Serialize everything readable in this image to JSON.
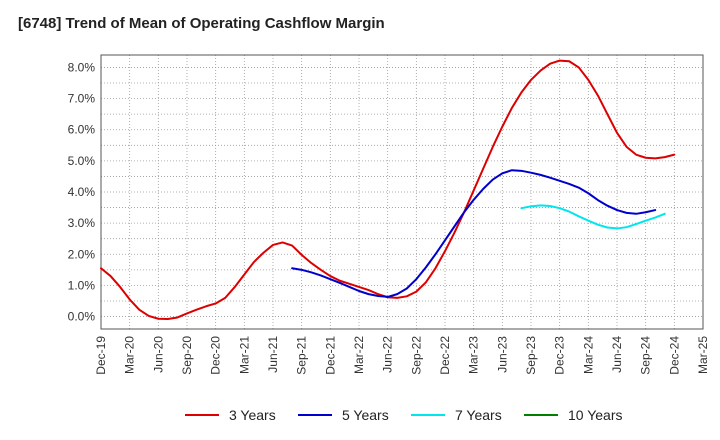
{
  "chart_data": {
    "type": "line",
    "title": "[6748]  Trend of Mean of Operating Cashflow Margin",
    "xlabel": "",
    "ylabel": "",
    "ylim": [
      -0.4,
      8.4
    ],
    "y_ticks": [
      0.0,
      1.0,
      2.0,
      3.0,
      4.0,
      5.0,
      6.0,
      7.0,
      8.0
    ],
    "y_tick_labels": [
      "0.0%",
      "1.0%",
      "2.0%",
      "3.0%",
      "4.0%",
      "5.0%",
      "6.0%",
      "7.0%",
      "8.0%"
    ],
    "x_tick_labels": [
      "Dec-19",
      "Mar-20",
      "Jun-20",
      "Sep-20",
      "Dec-20",
      "Mar-21",
      "Jun-21",
      "Sep-21",
      "Dec-21",
      "Mar-22",
      "Jun-22",
      "Sep-22",
      "Dec-22",
      "Mar-23",
      "Jun-23",
      "Sep-23",
      "Dec-23",
      "Mar-24",
      "Jun-24",
      "Sep-24",
      "Dec-24",
      "Mar-25"
    ],
    "grid": true,
    "legend_position": "bottom",
    "series": [
      {
        "name": "3 Years",
        "color": "#dd0000",
        "x_start": "Dec-19",
        "values": [
          1.55,
          1.3,
          0.95,
          0.55,
          0.22,
          0.02,
          -0.07,
          -0.08,
          -0.03,
          0.1,
          0.22,
          0.33,
          0.42,
          0.6,
          0.95,
          1.35,
          1.75,
          2.05,
          2.3,
          2.38,
          2.28,
          1.98,
          1.72,
          1.5,
          1.3,
          1.15,
          1.05,
          0.95,
          0.85,
          0.72,
          0.62,
          0.6,
          0.65,
          0.8,
          1.1,
          1.55,
          2.1,
          2.7,
          3.35,
          4.05,
          4.75,
          5.45,
          6.1,
          6.7,
          7.2,
          7.6,
          7.9,
          8.12,
          8.22,
          8.2,
          8.0,
          7.6,
          7.1,
          6.5,
          5.9,
          5.45,
          5.2,
          5.1,
          5.08,
          5.12,
          5.2
        ]
      },
      {
        "name": "5 Years",
        "color": "#0000cc",
        "x_start": "Aug-21",
        "values": [
          1.55,
          1.5,
          1.42,
          1.32,
          1.2,
          1.08,
          0.95,
          0.82,
          0.72,
          0.66,
          0.63,
          0.72,
          0.9,
          1.2,
          1.58,
          2.0,
          2.45,
          2.9,
          3.35,
          3.75,
          4.1,
          4.4,
          4.6,
          4.7,
          4.68,
          4.62,
          4.55,
          4.46,
          4.36,
          4.26,
          4.14,
          3.96,
          3.74,
          3.56,
          3.42,
          3.33,
          3.3,
          3.35,
          3.42
        ]
      },
      {
        "name": "7 Years",
        "color": "#00e5ee",
        "x_start": "Aug-23",
        "values": [
          3.48,
          3.54,
          3.57,
          3.55,
          3.48,
          3.37,
          3.22,
          3.08,
          2.95,
          2.86,
          2.83,
          2.87,
          2.97,
          3.08,
          3.18,
          3.3
        ]
      },
      {
        "name": "10 Years",
        "color": "#008000",
        "x_start": "Dec-24",
        "values": []
      }
    ]
  }
}
